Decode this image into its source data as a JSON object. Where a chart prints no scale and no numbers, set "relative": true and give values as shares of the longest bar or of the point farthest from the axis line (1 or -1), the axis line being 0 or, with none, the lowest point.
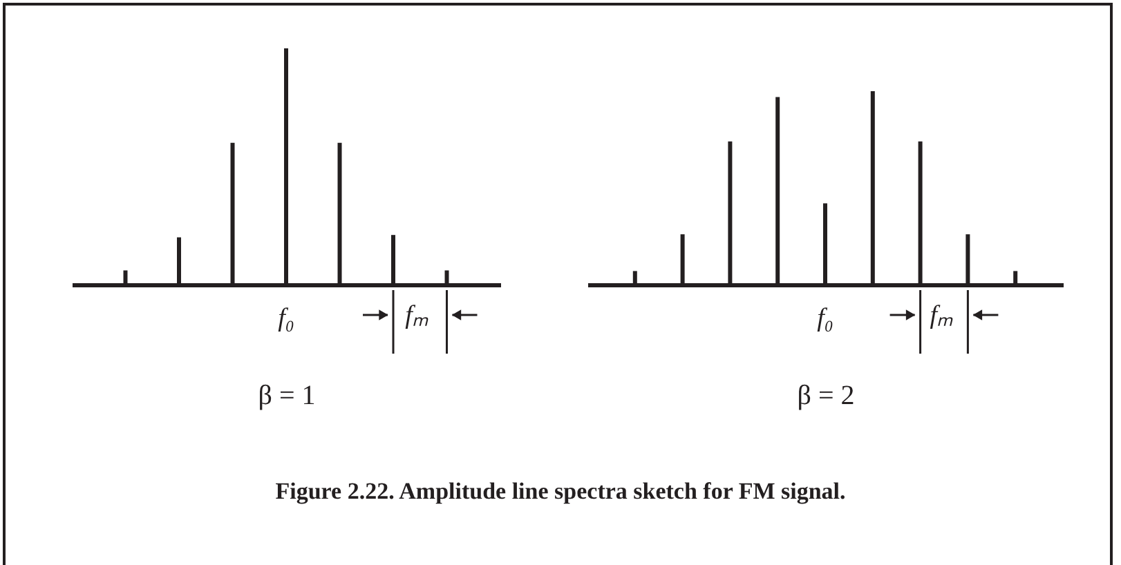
{
  "chart_data": [
    {
      "type": "bar",
      "relative": true,
      "color": "#231f20",
      "categories": [
        null,
        null,
        null,
        null,
        null,
        null,
        null
      ],
      "values": [
        0.06,
        0.2,
        0.6,
        1,
        0.6,
        0.21,
        0.06
      ],
      "xlabel": "β = 1",
      "annotations": [
        "f₀",
        "fₘ",
        "Figure 2.22. Amplitude line spectra sketch for FM signal."
      ]
    },
    {
      "type": "bar",
      "relative": true,
      "color": "#231f20",
      "categories": [
        null,
        null,
        null,
        null,
        null,
        null,
        null,
        null,
        null
      ],
      "values": [
        0.07,
        0.26,
        0.74,
        0.97,
        0.42,
        1,
        0.74,
        0.26,
        0.07
      ],
      "xlabel": "β = 2",
      "annotations": [
        "f₀",
        "fₘ"
      ]
    }
  ]
}
